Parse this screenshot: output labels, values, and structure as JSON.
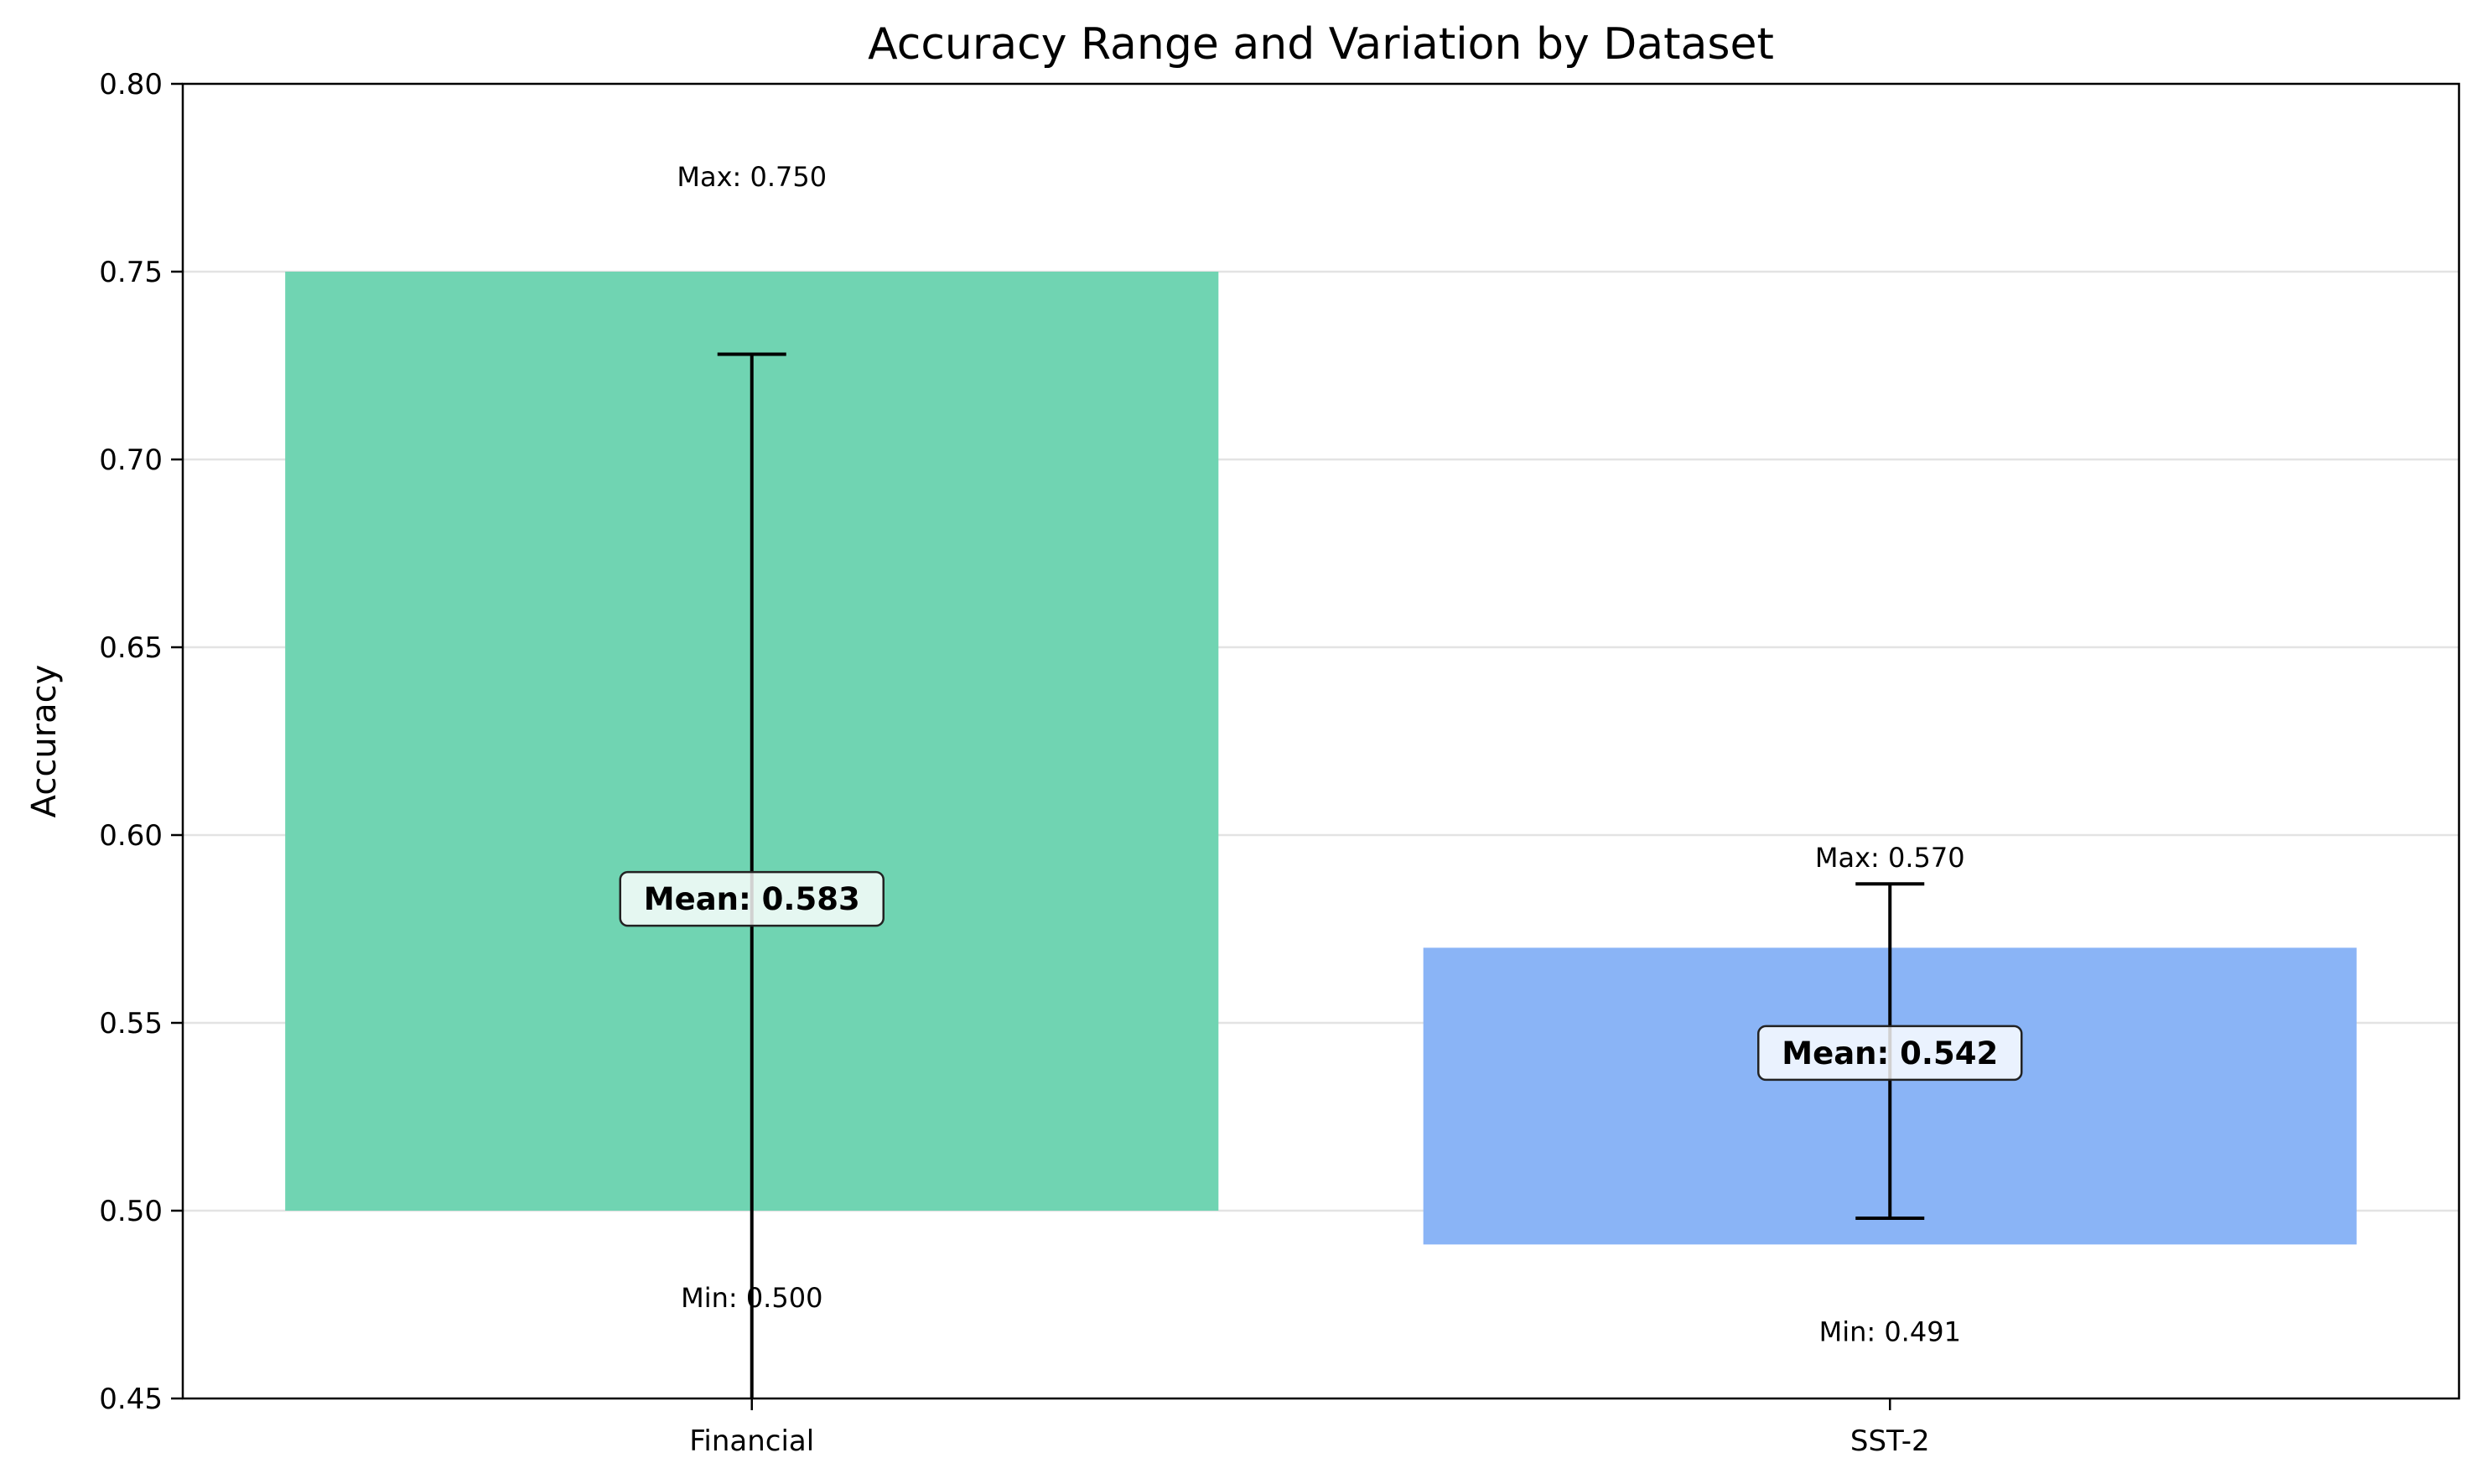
{
  "chart_data": {
    "type": "bar",
    "title": "Accuracy Range and Variation by Dataset",
    "xlabel": "",
    "ylabel": "Accuracy",
    "ylim": [
      0.45,
      0.8
    ],
    "yticks": [
      0.45,
      0.5,
      0.55,
      0.6,
      0.65,
      0.7,
      0.75,
      0.8
    ],
    "ytick_labels": [
      "0.45",
      "0.50",
      "0.55",
      "0.60",
      "0.65",
      "0.70",
      "0.75",
      "0.80"
    ],
    "grid": "horizontal",
    "categories": [
      "Financial",
      "SST-2"
    ],
    "series": [
      {
        "min": [
          0.5,
          0.491
        ],
        "max": [
          0.75,
          0.57
        ],
        "mean": [
          0.583,
          0.542
        ],
        "error_low": [
          0.438,
          0.498
        ],
        "error_high": [
          0.728,
          0.587
        ],
        "colors": [
          "#70d4b2",
          "#8ab4f6"
        ]
      }
    ],
    "annotations": {
      "max_labels": [
        "Max: 0.750",
        "Max: 0.570"
      ],
      "min_labels": [
        "Min: 0.500",
        "Min: 0.491"
      ],
      "mean_labels": [
        "Mean: 0.583",
        "Mean: 0.542"
      ]
    }
  }
}
